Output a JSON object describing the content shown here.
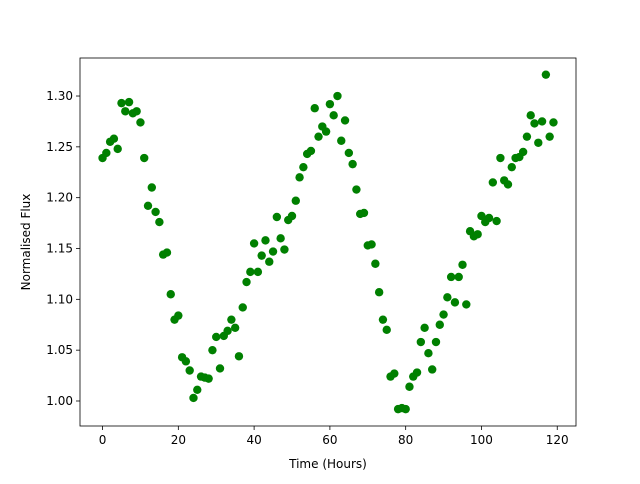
{
  "chart_data": {
    "type": "scatter",
    "xlabel": "Time (Hours)",
    "ylabel": "Normalised Flux",
    "color": "#008000",
    "x": [
      0,
      1,
      2,
      3,
      4,
      5,
      6,
      7,
      8,
      9,
      10,
      11,
      12,
      13,
      14,
      15,
      16,
      17,
      18,
      19,
      20,
      21,
      22,
      23,
      24,
      25,
      26,
      27,
      28,
      29,
      30,
      31,
      32,
      33,
      34,
      35,
      36,
      37,
      38,
      39,
      40,
      41,
      42,
      43,
      44,
      45,
      46,
      47,
      48,
      49,
      50,
      51,
      52,
      53,
      54,
      55,
      56,
      57,
      58,
      59,
      60,
      61,
      62,
      63,
      64,
      65,
      66,
      67,
      68,
      69,
      70,
      71,
      72,
      73,
      74,
      75,
      76,
      77,
      78,
      79,
      80,
      81,
      82,
      83,
      84,
      85,
      86,
      87,
      88,
      89,
      90,
      91,
      92,
      93,
      94,
      95,
      96,
      97,
      98,
      99,
      100,
      101,
      102,
      103,
      104,
      105,
      106,
      107,
      108,
      109,
      110,
      111,
      112,
      113,
      114,
      115,
      116,
      117,
      118,
      119
    ],
    "values": [
      1.239,
      1.244,
      1.255,
      1.258,
      1.248,
      1.293,
      1.285,
      1.294,
      1.283,
      1.285,
      1.274,
      1.239,
      1.192,
      1.21,
      1.186,
      1.176,
      1.144,
      1.146,
      1.105,
      1.08,
      1.084,
      1.043,
      1.039,
      1.03,
      1.003,
      1.011,
      1.024,
      1.023,
      1.022,
      1.05,
      1.063,
      1.032,
      1.064,
      1.069,
      1.08,
      1.072,
      1.044,
      1.092,
      1.117,
      1.127,
      1.155,
      1.127,
      1.143,
      1.158,
      1.137,
      1.147,
      1.181,
      1.16,
      1.149,
      1.178,
      1.182,
      1.197,
      1.22,
      1.23,
      1.243,
      1.246,
      1.288,
      1.26,
      1.27,
      1.265,
      1.292,
      1.281,
      1.3,
      1.256,
      1.276,
      1.244,
      1.233,
      1.208,
      1.184,
      1.185,
      1.153,
      1.154,
      1.135,
      1.107,
      1.08,
      1.07,
      1.024,
      1.027,
      0.992,
      0.993,
      0.992,
      1.014,
      1.024,
      1.028,
      1.058,
      1.072,
      1.047,
      1.031,
      1.058,
      1.075,
      1.085,
      1.102,
      1.122,
      1.097,
      1.122,
      1.134,
      1.095,
      1.167,
      1.162,
      1.164,
      1.182,
      1.176,
      1.18,
      1.215,
      1.177,
      1.239,
      1.217,
      1.213,
      1.23,
      1.239,
      1.24,
      1.245,
      1.26,
      1.281,
      1.273,
      1.254,
      1.275,
      1.321,
      1.26,
      1.274
    ],
    "xlim": [
      -5.95,
      124.95
    ],
    "xticks": [
      0,
      20,
      40,
      60,
      80,
      100,
      120
    ],
    "ylim": [
      0.9754,
      1.3374
    ],
    "yticks": [
      {
        "value": 1.0,
        "label": "1.00"
      },
      {
        "value": 1.05,
        "label": "1.05"
      },
      {
        "value": 1.1,
        "label": "1.10"
      },
      {
        "value": 1.15,
        "label": "1.15"
      },
      {
        "value": 1.2,
        "label": "1.20"
      },
      {
        "value": 1.25,
        "label": "1.25"
      },
      {
        "value": 1.3,
        "label": "1.30"
      }
    ]
  }
}
